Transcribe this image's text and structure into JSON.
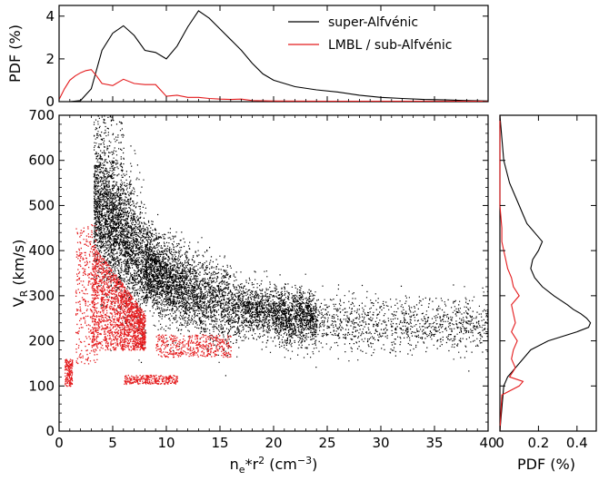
{
  "chart_data": {
    "type": "scatter",
    "colors": {
      "super": "#000000",
      "sub": "#e41a1c"
    },
    "legend": {
      "placement": "top-right of top panel",
      "entries": [
        "super-Alfvénic",
        "LMBL / sub-Alfvénic"
      ]
    },
    "main": {
      "xlabel": "n",
      "xlabel_sub": "e",
      "xlabel_mid": "*r",
      "xlabel_sup": "2",
      "xlabel_unit": " (cm",
      "xlabel_unit_sup": "−3",
      "xlabel_close": ")",
      "ylabel": "V",
      "ylabel_sub": "R",
      "ylabel_unit": " (km/s)",
      "xlim": [
        0,
        40
      ],
      "ylim": [
        0,
        700
      ],
      "xticks": [
        "0",
        "5",
        "10",
        "15",
        "20",
        "25",
        "30",
        "35",
        "40"
      ],
      "yticks": [
        "0",
        "100",
        "200",
        "300",
        "400",
        "500",
        "600",
        "700"
      ],
      "super_trend": [
        [
          3.5,
          500
        ],
        [
          4.5,
          470
        ],
        [
          6,
          430
        ],
        [
          8,
          370
        ],
        [
          10,
          335
        ],
        [
          13,
          300
        ],
        [
          16,
          280
        ],
        [
          20,
          260
        ],
        [
          25,
          245
        ],
        [
          30,
          240
        ],
        [
          35,
          238
        ],
        [
          40,
          235
        ]
      ],
      "sub_clusters": [
        {
          "x": [
            3.0,
            8.0
          ],
          "y": [
            180,
            420
          ]
        },
        {
          "x": [
            0.5,
            1.2
          ],
          "y": [
            100,
            160
          ]
        },
        {
          "x": [
            6.0,
            11.0
          ],
          "y": [
            105,
            125
          ]
        },
        {
          "x": [
            9.0,
            16.0
          ],
          "y": [
            165,
            215
          ]
        },
        {
          "x": [
            1.5,
            3.5
          ],
          "y": [
            150,
            460
          ]
        }
      ]
    },
    "top": {
      "ylabel": "PDF (%)",
      "ylim": [
        0,
        4.5
      ],
      "yticks": [
        "0",
        "2",
        "4"
      ],
      "super": {
        "x": [
          0,
          1,
          2,
          3,
          4,
          5,
          6,
          7,
          8,
          9,
          10,
          11,
          12,
          13,
          14,
          15,
          16,
          17,
          18,
          19,
          20,
          22,
          24,
          26,
          28,
          30,
          32,
          34,
          36,
          38,
          40
        ],
        "y": [
          0,
          0,
          0.05,
          0.6,
          2.4,
          3.2,
          3.55,
          3.1,
          2.4,
          2.3,
          2.0,
          2.6,
          3.5,
          4.25,
          3.9,
          3.4,
          2.9,
          2.4,
          1.8,
          1.3,
          1.0,
          0.7,
          0.55,
          0.45,
          0.3,
          0.2,
          0.15,
          0.1,
          0.08,
          0.05,
          0.03
        ]
      },
      "sub": {
        "x": [
          0,
          0.5,
          1,
          1.5,
          2,
          2.5,
          3,
          3.5,
          4,
          5,
          6,
          7,
          8,
          9,
          10,
          11,
          12,
          13,
          14,
          15,
          16,
          17,
          18,
          20,
          25,
          30,
          35,
          40
        ],
        "y": [
          0.1,
          0.6,
          1.0,
          1.2,
          1.35,
          1.45,
          1.5,
          1.2,
          0.85,
          0.75,
          1.05,
          0.85,
          0.8,
          0.8,
          0.25,
          0.3,
          0.2,
          0.2,
          0.15,
          0.12,
          0.1,
          0.12,
          0.05,
          0.03,
          0.02,
          0.02,
          0.02,
          0.02
        ]
      }
    },
    "right": {
      "xlabel": "PDF (%)",
      "xlim": [
        0,
        0.5
      ],
      "xticks": [
        "0",
        "0.2",
        "0.4"
      ],
      "super": {
        "y": [
          0,
          50,
          100,
          120,
          140,
          160,
          180,
          200,
          220,
          230,
          240,
          250,
          260,
          270,
          280,
          300,
          320,
          340,
          360,
          380,
          400,
          420,
          440,
          460,
          480,
          500,
          550,
          600,
          650,
          700
        ],
        "x": [
          0,
          0.01,
          0.02,
          0.04,
          0.08,
          0.12,
          0.16,
          0.25,
          0.4,
          0.46,
          0.47,
          0.45,
          0.42,
          0.38,
          0.35,
          0.28,
          0.22,
          0.18,
          0.16,
          0.17,
          0.2,
          0.22,
          0.18,
          0.14,
          0.12,
          0.1,
          0.05,
          0.02,
          0.01,
          0
        ]
      },
      "sub": {
        "y": [
          0,
          80,
          100,
          110,
          120,
          140,
          160,
          180,
          200,
          220,
          240,
          260,
          280,
          300,
          320,
          340,
          360,
          380,
          400,
          420,
          450,
          500,
          550,
          600,
          700
        ],
        "x": [
          0,
          0.01,
          0.1,
          0.12,
          0.05,
          0.08,
          0.06,
          0.07,
          0.09,
          0.06,
          0.08,
          0.07,
          0.06,
          0.1,
          0.07,
          0.06,
          0.04,
          0.03,
          0.02,
          0.01,
          0.01,
          0,
          0,
          0,
          0
        ]
      }
    }
  }
}
